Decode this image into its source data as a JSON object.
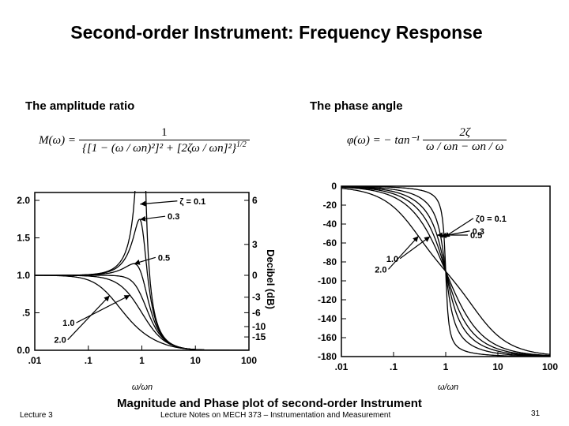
{
  "title": "Second-order Instrument: Frequency Response",
  "amplitude_label": "The amplitude ratio",
  "phase_label": "The phase angle",
  "equations": {
    "magnitude_lhs": "M(ω) =",
    "magnitude_numerator": "1",
    "magnitude_den_a": "{[1 − (ω / ωn)²]² + [2ζω / ωn]²}",
    "magnitude_den_exp": "1/2",
    "phase_lhs": "φ(ω) = − tan⁻¹",
    "phase_numerator": "2ζ",
    "phase_denominator": "ω / ωn − ωn / ω"
  },
  "caption": "Magnitude and Phase plot of second-order Instrument",
  "footer": {
    "lecture": "Lecture 3",
    "notes": "Lecture Notes on MECH 373 – Instrumentation and Measurement",
    "page": "31"
  },
  "chart_data": [
    {
      "type": "line",
      "title": "",
      "xlabel": "ω/ωn",
      "ylabel": "",
      "ylabel_right": "Decibel (dB)",
      "x_scale": "log",
      "xlim": [
        0.01,
        100
      ],
      "ylim": [
        0,
        2.0
      ],
      "x_ticks": [
        0.01,
        0.1,
        1,
        10,
        100
      ],
      "x_tick_labels": [
        ".01",
        ".1",
        "1",
        "10",
        "100"
      ],
      "y_ticks": [
        0,
        0.5,
        1.0,
        1.5,
        2.0
      ],
      "y_tick_labels": [
        "0.0",
        ".5",
        "1.0",
        "1.5",
        "2.0"
      ],
      "db_ticks": [
        {
          "ratio": 2.0,
          "label": "6"
        },
        {
          "ratio": 1.4125,
          "label": "3"
        },
        {
          "ratio": 1.0,
          "label": "0"
        },
        {
          "ratio": 0.708,
          "label": "-3"
        },
        {
          "ratio": 0.501,
          "label": "-6"
        },
        {
          "ratio": 0.316,
          "label": "-10"
        },
        {
          "ratio": 0.178,
          "label": "-15"
        }
      ],
      "damping_ratios": [
        0.1,
        0.3,
        0.5,
        0.707,
        1.0,
        2.0
      ],
      "annotations": [
        {
          "text": "ζ = 0.1",
          "zeta": 0.1
        },
        {
          "text": "0.3",
          "zeta": 0.3
        },
        {
          "text": "0.5",
          "zeta": 0.5
        },
        {
          "text": "1.0",
          "zeta": 1.0
        },
        {
          "text": "2.0",
          "zeta": 2.0
        }
      ],
      "grid": false
    },
    {
      "type": "line",
      "title": "",
      "xlabel": "ω/ωn",
      "ylabel": "",
      "x_scale": "log",
      "xlim": [
        0.01,
        100
      ],
      "ylim": [
        -180,
        0
      ],
      "x_ticks": [
        0.01,
        0.1,
        1,
        10,
        100
      ],
      "x_tick_labels": [
        ".01",
        ".1",
        "1",
        "10",
        "100"
      ],
      "y_ticks": [
        0,
        -20,
        -40,
        -60,
        -80,
        -100,
        -120,
        -140,
        -160,
        -180
      ],
      "y_tick_labels": [
        "0",
        "-20",
        "-40",
        "-60",
        "-80",
        "-100",
        "-120",
        "-140",
        "-160",
        "-180"
      ],
      "damping_ratios": [
        0.1,
        0.3,
        0.5,
        0.707,
        1.0,
        2.0
      ],
      "annotations": [
        {
          "text": "ζ0 = 0.1",
          "zeta": 0.1
        },
        {
          "text": "0.3",
          "zeta": 0.3
        },
        {
          "text": "0.5",
          "zeta": 0.5
        },
        {
          "text": "1.0",
          "zeta": 1.0
        },
        {
          "text": "2.0",
          "zeta": 2.0
        }
      ],
      "grid": false
    }
  ]
}
